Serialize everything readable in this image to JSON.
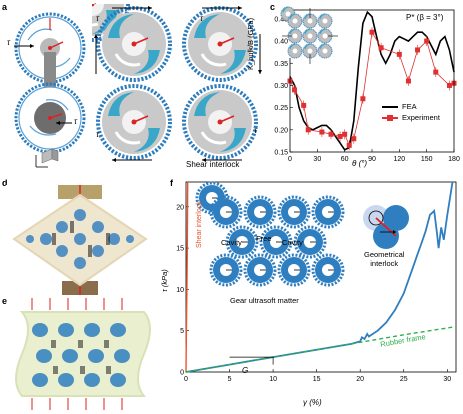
{
  "panel_labels": {
    "a": "a",
    "b": "b",
    "c": "c",
    "d": "d",
    "e": "e",
    "f": "f"
  },
  "panel_a": {
    "tau_top": "τ",
    "tau_bottom": "τ"
  },
  "panel_b": {
    "caption": "Shear interlock",
    "tau_labels": [
      "τ",
      "τ",
      "τ",
      "τ"
    ]
  },
  "panel_c": {
    "title": "P* (β = 3°)",
    "ylabel": "K_bulk/B (GPa)",
    "xlabel": "θ (°)",
    "xticks": [
      "0",
      "30",
      "60",
      "90",
      "120",
      "150",
      "180"
    ],
    "yticks": [
      "0.15",
      "0.20",
      "0.25",
      "0.30",
      "0.35",
      "0.40",
      "0.45"
    ],
    "legend": [
      "FEA",
      "Experiment"
    ]
  },
  "panel_f": {
    "ylabel": "τ (kPa)",
    "xlabel": "γ (%)",
    "xticks": [
      "0",
      "5",
      "10",
      "15",
      "20",
      "25",
      "30"
    ],
    "yticks": [
      "0",
      "5",
      "10",
      "15",
      "20"
    ],
    "shear_interlock": "Shear interlock",
    "cavity_left": "Cavity",
    "free": "Free",
    "cavity_right": "Cavity",
    "gear_caption": "Gear ultrasoft matter",
    "geometrical_interlock": "Geometrical\ninterlock",
    "rubber_frame": "Rubber frame",
    "G": "G"
  },
  "chart_data": [
    {
      "type": "line",
      "title": "P* (β = 3°)",
      "xlabel": "θ (°)",
      "ylabel": "K_bulk/B (GPa)",
      "xlim": [
        0,
        180
      ],
      "ylim": [
        0.15,
        0.47
      ],
      "series": [
        {
          "name": "FEA",
          "x": [
            0,
            5,
            10,
            15,
            20,
            25,
            30,
            35,
            40,
            45,
            50,
            55,
            60,
            65,
            70,
            75,
            80,
            85,
            90,
            95,
            100,
            105,
            110,
            115,
            120,
            125,
            130,
            135,
            140,
            145,
            150,
            155,
            160,
            165,
            170,
            175,
            180
          ],
          "y": [
            0.32,
            0.3,
            0.25,
            0.22,
            0.205,
            0.2,
            0.205,
            0.21,
            0.21,
            0.2,
            0.185,
            0.17,
            0.155,
            0.16,
            0.22,
            0.34,
            0.44,
            0.465,
            0.455,
            0.41,
            0.37,
            0.35,
            0.37,
            0.4,
            0.41,
            0.405,
            0.4,
            0.41,
            0.42,
            0.42,
            0.41,
            0.39,
            0.37,
            0.4,
            0.41,
            0.38,
            0.33
          ]
        },
        {
          "name": "Experiment",
          "x": [
            0,
            5,
            15,
            20,
            35,
            45,
            55,
            60,
            65,
            70,
            80,
            90,
            100,
            120,
            130,
            140,
            150,
            160,
            175,
            180
          ],
          "y": [
            0.31,
            0.29,
            0.255,
            0.2,
            0.195,
            0.19,
            0.185,
            0.19,
            0.165,
            0.18,
            0.27,
            0.42,
            0.385,
            0.37,
            0.31,
            0.38,
            0.4,
            0.33,
            0.3,
            0.305
          ]
        }
      ]
    },
    {
      "type": "line",
      "xlabel": "γ (%)",
      "ylabel": "τ (kPa)",
      "xlim": [
        0,
        31
      ],
      "ylim": [
        0,
        23
      ],
      "series": [
        {
          "name": "Shear interlock",
          "x": [
            0,
            0.05,
            0.1,
            0.15,
            0.2
          ],
          "y": [
            0,
            5,
            10,
            15,
            23
          ]
        },
        {
          "name": "Gear ultrasoft matter",
          "x": [
            0,
            5,
            10,
            15,
            19,
            20,
            20.2,
            20.5,
            20.8,
            21,
            22,
            23,
            24,
            25,
            25.5,
            26,
            26.5,
            27,
            27.5,
            28,
            28.5,
            28.8,
            29,
            29.3,
            29.6,
            30,
            30.3,
            30.6
          ],
          "y": [
            0,
            0.9,
            1.8,
            2.7,
            3.4,
            3.7,
            4.2,
            4.0,
            4.6,
            4.3,
            5.0,
            6.0,
            7.5,
            9.5,
            11,
            12.5,
            14,
            15.5,
            17,
            19,
            19.5,
            17,
            15,
            17.5,
            16,
            19,
            21,
            23
          ]
        },
        {
          "name": "Rubber frame",
          "x": [
            0,
            5,
            10,
            15,
            20,
            25,
            31
          ],
          "y": [
            0,
            0.9,
            1.8,
            2.7,
            3.6,
            4.5,
            5.5
          ]
        }
      ]
    }
  ]
}
